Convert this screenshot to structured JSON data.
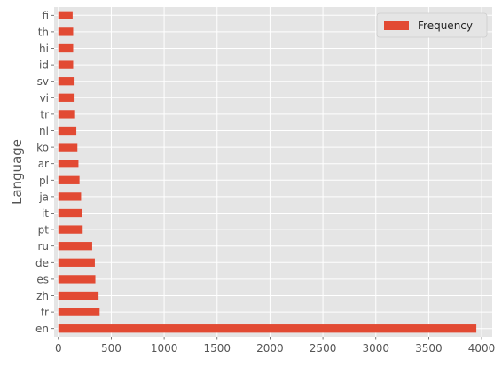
{
  "chart_data": {
    "type": "bar",
    "orientation": "horizontal",
    "categories": [
      "en",
      "fr",
      "zh",
      "es",
      "de",
      "ru",
      "pt",
      "it",
      "ja",
      "pl",
      "ar",
      "ko",
      "nl",
      "tr",
      "vi",
      "sv",
      "id",
      "hi",
      "th",
      "fi"
    ],
    "series": [
      {
        "name": "Frequency",
        "values": [
          3950,
          390,
          380,
          350,
          345,
          320,
          230,
          225,
          215,
          200,
          190,
          180,
          170,
          150,
          145,
          145,
          140,
          140,
          140,
          135
        ]
      }
    ],
    "ylabel": "Language",
    "xlabel": "",
    "xlim": [
      0,
      4100
    ],
    "xticks": [
      0,
      500,
      1000,
      1500,
      2000,
      2500,
      3000,
      3500,
      4000
    ],
    "grid": true,
    "legend": "top-right",
    "colors": {
      "bar": "#e24a33",
      "plot_background": "#e5e5e5",
      "grid": "#ffffff",
      "text": "#555555"
    }
  }
}
